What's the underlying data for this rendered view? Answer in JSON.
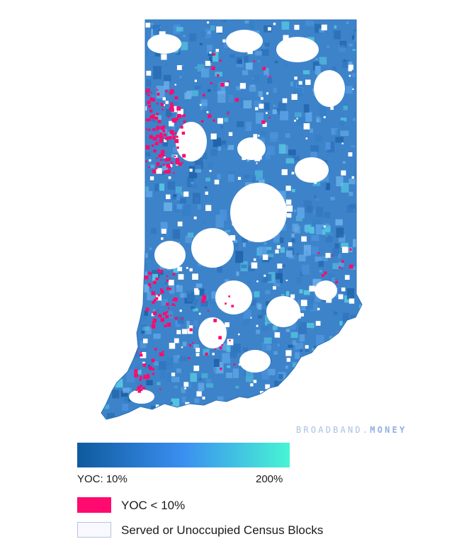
{
  "watermark": {
    "part1": "BROADBAND",
    "dot": ".",
    "part2": "MONEY"
  },
  "colors": {
    "gradient_start": "#0f5a9e",
    "gradient_mid": "#3b8ff0",
    "gradient_end": "#47f5d4",
    "yoc_low": "#ff0a6e",
    "served": "#f7f9ff",
    "served_border": "#b8c0de",
    "state_fill": "#3d83c9",
    "state_outline": "#2b72b8"
  },
  "gradient": {
    "min_label": "YOC: 10%",
    "max_label": "200%"
  },
  "legend": {
    "items": [
      {
        "label": "YOC < 10%",
        "color_key": "yoc_low"
      },
      {
        "label": "Served or Unoccupied Census Blocks",
        "color_key": "served"
      }
    ]
  }
}
